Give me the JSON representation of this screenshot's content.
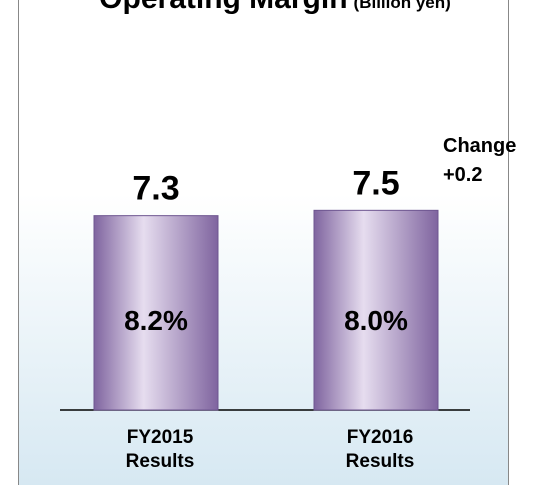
{
  "chart_data": {
    "type": "bar",
    "title": "Operating Margin",
    "subtitle": "(Billion yen)",
    "categories": [
      "FY2015 Results",
      "FY2016 Results"
    ],
    "values": [
      7.3,
      7.5
    ],
    "inner_labels": [
      "8.2%",
      "8.0%"
    ],
    "annotation": [
      "Change",
      "+0.2"
    ],
    "color": "#7f649f",
    "ylim": [
      0,
      15.4
    ]
  }
}
